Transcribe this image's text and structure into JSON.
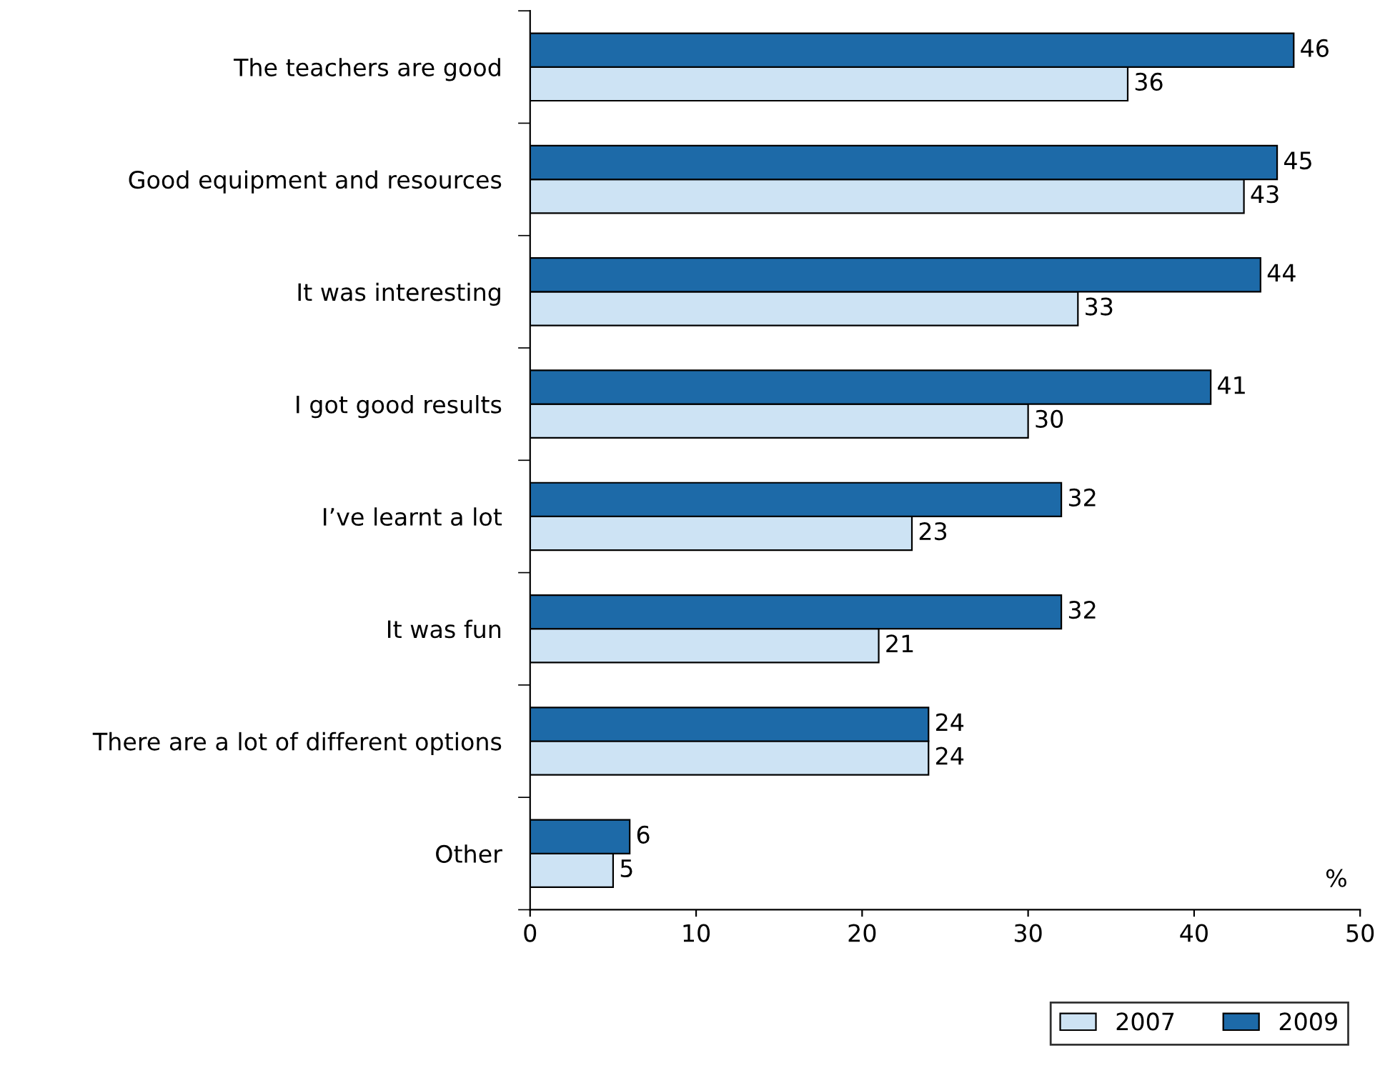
{
  "chart_data": {
    "type": "bar",
    "orientation": "horizontal",
    "categories": [
      "The teachers are good",
      "Good equipment and resources",
      "It was interesting",
      "I got good results",
      "I’ve learnt a lot",
      "It was fun",
      "There are a lot of different options",
      "Other"
    ],
    "series": [
      {
        "name": "2007",
        "color": "#cde3f4",
        "values": [
          36,
          43,
          33,
          30,
          23,
          21,
          24,
          5
        ]
      },
      {
        "name": "2009",
        "color": "#1d6aa8",
        "values": [
          46,
          45,
          44,
          41,
          32,
          32,
          24,
          6
        ]
      }
    ],
    "xlim": [
      0,
      50
    ],
    "xticks": [
      0,
      10,
      20,
      30,
      40,
      50
    ],
    "data_labels": true,
    "grid": false,
    "legend": "bottom right",
    "annotations": [
      "%"
    ]
  }
}
